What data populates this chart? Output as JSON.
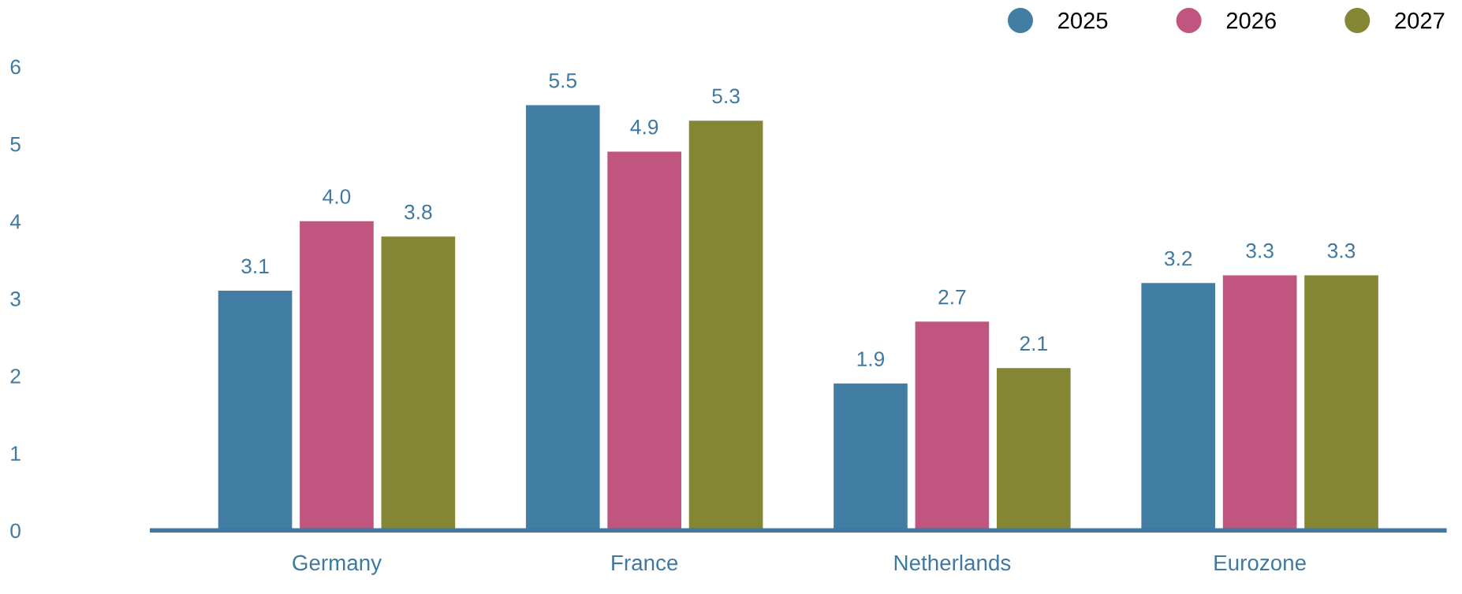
{
  "chart_data": {
    "type": "bar",
    "categories": [
      "Germany",
      "France",
      "Netherlands",
      "Eurozone"
    ],
    "series": [
      {
        "name": "2025",
        "color": "#427ea3",
        "values": [
          3.1,
          5.5,
          1.9,
          3.2
        ],
        "value_labels": [
          "3.1",
          "5.5",
          "1.9",
          "3.2"
        ]
      },
      {
        "name": "2026",
        "color": "#c0567f",
        "values": [
          4.0,
          4.9,
          2.7,
          3.3
        ],
        "value_labels": [
          "4.0",
          "4.9",
          "2.7",
          "3.3"
        ]
      },
      {
        "name": "2027",
        "color": "#848633",
        "values": [
          3.8,
          5.3,
          2.1,
          3.3
        ],
        "value_labels": [
          "3.8",
          "5.3",
          "2.1",
          "3.3"
        ]
      }
    ],
    "ylim": [
      0,
      6
    ],
    "yticks": [
      0,
      1,
      2,
      3,
      4,
      5,
      6
    ],
    "grid": false,
    "legend": "top right",
    "marker": "circle"
  }
}
